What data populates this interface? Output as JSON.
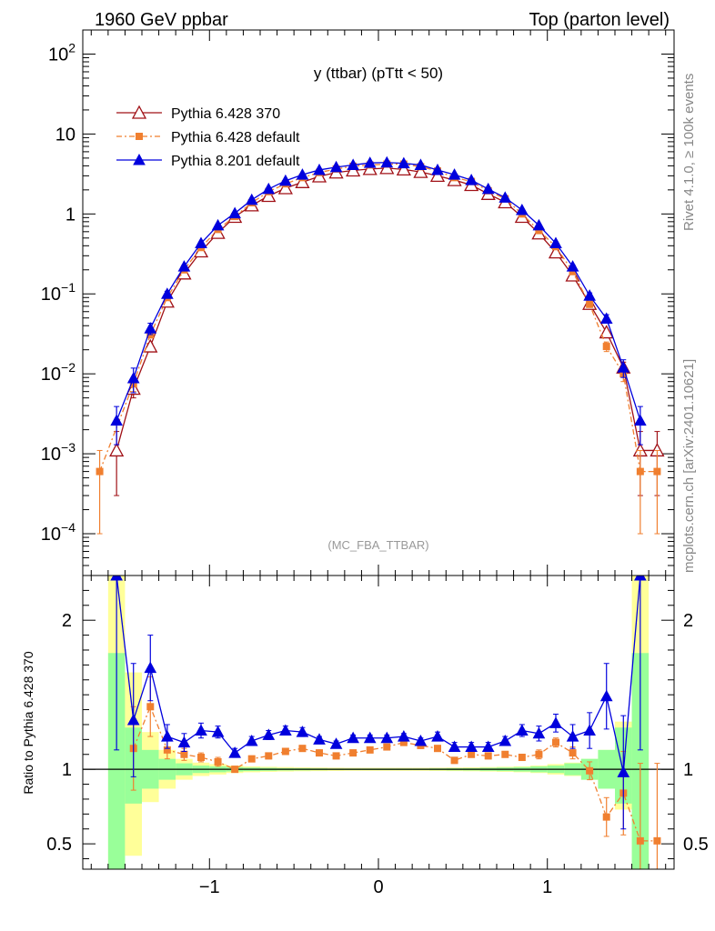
{
  "header": {
    "left": "1960 GeV ppbar",
    "right": "Top (parton level)"
  },
  "side": {
    "rivet": "Rivet 4.1.0, ≥ 100k events",
    "mcplots": "mcplots.cern.ch [arXiv:2401.10621]"
  },
  "chart_data": [
    {
      "type": "line",
      "panel": "main",
      "title": "y (ttbar) (pTtt < 50)",
      "annotation": "(MC_FBA_TTBAR)",
      "xlabel": "",
      "ylabel": "",
      "xlim": [
        -1.75,
        1.75
      ],
      "ylim": [
        3e-05,
        200
      ],
      "yscale": "log",
      "x_ticks": [
        "−1",
        "0",
        "1"
      ],
      "y_ticks": [
        {
          "base": "10",
          "exp": "2",
          "value": 100
        },
        {
          "base": "10",
          "exp": "",
          "value": 10
        },
        {
          "base": "1",
          "exp": "",
          "value": 1
        },
        {
          "base": "10",
          "exp": "−1",
          "value": 0.1
        },
        {
          "base": "10",
          "exp": "−2",
          "value": 0.01
        },
        {
          "base": "10",
          "exp": "−3",
          "value": 0.001
        },
        {
          "base": "10",
          "exp": "−4",
          "value": 0.0001
        }
      ],
      "legend_position": "top-left",
      "series": [
        {
          "name": "Pythia 6.428 370",
          "color": "#a01016",
          "marker": "open-triangle",
          "linestyle": "solid",
          "x": [
            -1.55,
            -1.45,
            -1.35,
            -1.25,
            -1.15,
            -1.05,
            -0.95,
            -0.85,
            -0.75,
            -0.65,
            -0.55,
            -0.45,
            -0.35,
            -0.25,
            -0.15,
            -0.05,
            0.05,
            0.15,
            0.25,
            0.35,
            0.45,
            0.55,
            0.65,
            0.75,
            0.85,
            0.95,
            1.05,
            1.15,
            1.25,
            1.35,
            1.45,
            1.55,
            1.65
          ],
          "y": [
            0.0011,
            0.0065,
            0.022,
            0.08,
            0.18,
            0.34,
            0.58,
            0.92,
            1.28,
            1.68,
            2.1,
            2.5,
            2.95,
            3.3,
            3.5,
            3.65,
            3.75,
            3.6,
            3.35,
            3.0,
            2.65,
            2.3,
            1.78,
            1.4,
            0.92,
            0.57,
            0.33,
            0.17,
            0.075,
            0.033,
            0.012,
            0.0011,
            0.0011
          ],
          "err_low": [
            0.0008,
            0.0015,
            0.002,
            0.004,
            0.005,
            0.01,
            0.02,
            0.03,
            0.03,
            0.04,
            0.04,
            0.05,
            0.05,
            0.05,
            0.05,
            0.05,
            0.05,
            0.05,
            0.05,
            0.05,
            0.04,
            0.04,
            0.04,
            0.03,
            0.03,
            0.02,
            0.01,
            0.005,
            0.003,
            0.002,
            0.002,
            0.0008,
            0.0008
          ],
          "err_high": [
            0.0008,
            0.0015,
            0.002,
            0.004,
            0.005,
            0.01,
            0.02,
            0.03,
            0.03,
            0.04,
            0.04,
            0.05,
            0.05,
            0.05,
            0.05,
            0.05,
            0.05,
            0.05,
            0.05,
            0.05,
            0.04,
            0.04,
            0.04,
            0.03,
            0.03,
            0.02,
            0.01,
            0.005,
            0.003,
            0.002,
            0.002,
            0.0008,
            0.0008
          ]
        },
        {
          "name": "Pythia 6.428 default",
          "color": "#f07f2f",
          "marker": "filled-square",
          "linestyle": "dash-dot",
          "x": [
            -1.65,
            -1.45,
            -1.35,
            -1.25,
            -1.15,
            -1.05,
            -0.95,
            -0.85,
            -0.75,
            -0.65,
            -0.55,
            -0.45,
            -0.35,
            -0.25,
            -0.15,
            -0.05,
            0.05,
            0.15,
            0.25,
            0.35,
            0.45,
            0.55,
            0.65,
            0.75,
            0.85,
            0.95,
            1.05,
            1.15,
            1.25,
            1.35,
            1.45,
            1.55,
            1.65
          ],
          "y": [
            0.0006,
            0.0075,
            0.031,
            0.09,
            0.2,
            0.38,
            0.64,
            0.93,
            1.38,
            1.9,
            2.38,
            2.85,
            3.3,
            3.65,
            3.95,
            4.1,
            4.2,
            4.2,
            3.9,
            3.45,
            2.85,
            2.55,
            1.95,
            1.55,
            1.0,
            0.62,
            0.39,
            0.19,
            0.074,
            0.022,
            0.01,
            0.0006,
            0.0006
          ],
          "err_low": [
            0.0005,
            0.0015,
            0.003,
            0.005,
            0.006,
            0.01,
            0.02,
            0.03,
            0.03,
            0.04,
            0.04,
            0.05,
            0.05,
            0.05,
            0.05,
            0.05,
            0.05,
            0.05,
            0.05,
            0.05,
            0.04,
            0.04,
            0.04,
            0.03,
            0.03,
            0.02,
            0.01,
            0.006,
            0.004,
            0.003,
            0.002,
            0.0005,
            0.0005
          ],
          "err_high": [
            0.0005,
            0.0015,
            0.003,
            0.005,
            0.006,
            0.01,
            0.02,
            0.03,
            0.03,
            0.04,
            0.04,
            0.05,
            0.05,
            0.05,
            0.05,
            0.05,
            0.05,
            0.05,
            0.05,
            0.05,
            0.04,
            0.04,
            0.04,
            0.03,
            0.03,
            0.02,
            0.01,
            0.006,
            0.004,
            0.003,
            0.002,
            0.0005,
            0.0005
          ]
        },
        {
          "name": "Pythia 8.201 default",
          "color": "#0000dd",
          "marker": "filled-triangle",
          "linestyle": "solid",
          "x": [
            -1.55,
            -1.45,
            -1.35,
            -1.25,
            -1.15,
            -1.05,
            -0.95,
            -0.85,
            -0.75,
            -0.65,
            -0.55,
            -0.45,
            -0.35,
            -0.25,
            -0.15,
            -0.05,
            0.05,
            0.15,
            0.25,
            0.35,
            0.45,
            0.55,
            0.65,
            0.75,
            0.85,
            0.95,
            1.05,
            1.15,
            1.25,
            1.35,
            1.45,
            1.55
          ],
          "y": [
            0.0026,
            0.0088,
            0.037,
            0.1,
            0.22,
            0.43,
            0.72,
            1.02,
            1.5,
            2.05,
            2.6,
            3.1,
            3.55,
            3.85,
            4.1,
            4.35,
            4.4,
            4.3,
            4.1,
            3.55,
            3.1,
            2.65,
            2.05,
            1.6,
            1.12,
            0.72,
            0.43,
            0.22,
            0.095,
            0.049,
            0.012,
            0.0026
          ],
          "err_low": [
            0.0013,
            0.003,
            0.006,
            0.008,
            0.01,
            0.015,
            0.02,
            0.03,
            0.03,
            0.04,
            0.04,
            0.05,
            0.05,
            0.05,
            0.05,
            0.05,
            0.05,
            0.05,
            0.05,
            0.05,
            0.04,
            0.04,
            0.04,
            0.03,
            0.03,
            0.02,
            0.015,
            0.01,
            0.008,
            0.006,
            0.003,
            0.0013
          ],
          "err_high": [
            0.0013,
            0.003,
            0.006,
            0.008,
            0.01,
            0.015,
            0.02,
            0.03,
            0.03,
            0.04,
            0.04,
            0.05,
            0.05,
            0.05,
            0.05,
            0.05,
            0.05,
            0.05,
            0.05,
            0.05,
            0.04,
            0.04,
            0.04,
            0.03,
            0.03,
            0.02,
            0.015,
            0.01,
            0.008,
            0.006,
            0.003,
            0.0013
          ]
        }
      ]
    },
    {
      "type": "line",
      "panel": "ratio",
      "title": "",
      "xlabel": "",
      "ylabel": "Ratio to Pythia 6.428 370",
      "xlim": [
        -1.75,
        1.75
      ],
      "ylim": [
        0.33,
        2.3
      ],
      "y_ticks": [
        "2",
        "1",
        "0.5"
      ],
      "x_ticks": [
        "−1",
        "0",
        "1"
      ],
      "reference_line": 1,
      "bands": {
        "bin_edges": [
          -1.6,
          -1.5,
          -1.4,
          -1.3,
          -1.2,
          -1.1,
          -1.0,
          -0.9,
          -0.8,
          -0.7,
          -0.6,
          -0.5,
          -0.4,
          -0.3,
          -0.2,
          -0.1,
          0.0,
          0.1,
          0.2,
          0.3,
          0.4,
          0.5,
          0.6,
          0.7,
          0.8,
          0.9,
          1.0,
          1.1,
          1.2,
          1.3,
          1.4,
          1.5,
          1.6
        ],
        "green_low": [
          0.33,
          0.77,
          0.87,
          0.93,
          0.96,
          0.975,
          0.98,
          0.985,
          0.988,
          0.99,
          0.992,
          0.993,
          0.994,
          0.995,
          0.995,
          0.995,
          0.995,
          0.995,
          0.995,
          0.994,
          0.993,
          0.992,
          0.99,
          0.988,
          0.985,
          0.98,
          0.975,
          0.96,
          0.93,
          0.87,
          0.77,
          0.33
        ],
        "green_high": [
          1.78,
          1.28,
          1.13,
          1.07,
          1.04,
          1.025,
          1.02,
          1.015,
          1.012,
          1.01,
          1.008,
          1.007,
          1.006,
          1.005,
          1.005,
          1.005,
          1.005,
          1.005,
          1.005,
          1.006,
          1.007,
          1.008,
          1.01,
          1.012,
          1.015,
          1.02,
          1.025,
          1.04,
          1.07,
          1.13,
          1.28,
          1.78
        ],
        "yellow_low": [
          0.33,
          0.42,
          0.78,
          0.87,
          0.93,
          0.955,
          0.965,
          0.975,
          0.98,
          0.983,
          0.985,
          0.987,
          0.988,
          0.989,
          0.99,
          0.99,
          0.99,
          0.99,
          0.99,
          0.989,
          0.988,
          0.987,
          0.985,
          0.983,
          0.98,
          0.975,
          0.965,
          0.955,
          0.93,
          0.87,
          0.73,
          0.33
        ],
        "yellow_high": [
          2.3,
          1.65,
          1.25,
          1.13,
          1.07,
          1.045,
          1.035,
          1.025,
          1.02,
          1.017,
          1.015,
          1.013,
          1.012,
          1.011,
          1.01,
          1.01,
          1.01,
          1.01,
          1.01,
          1.011,
          1.012,
          1.013,
          1.015,
          1.017,
          1.02,
          1.025,
          1.035,
          1.045,
          1.07,
          1.13,
          1.32,
          2.3
        ]
      },
      "series": [
        {
          "name": "Pythia 6.428 default",
          "color": "#f07f2f",
          "marker": "filled-square",
          "linestyle": "dash-dot",
          "x": [
            -1.45,
            -1.35,
            -1.25,
            -1.15,
            -1.05,
            -0.95,
            -0.85,
            -0.75,
            -0.65,
            -0.55,
            -0.45,
            -0.35,
            -0.25,
            -0.15,
            -0.05,
            0.05,
            0.15,
            0.25,
            0.35,
            0.45,
            0.55,
            0.65,
            0.75,
            0.85,
            0.95,
            1.05,
            1.15,
            1.25,
            1.35,
            1.45,
            1.55,
            1.65
          ],
          "y": [
            1.14,
            1.42,
            1.13,
            1.1,
            1.08,
            1.05,
            1.0,
            1.07,
            1.09,
            1.12,
            1.14,
            1.11,
            1.09,
            1.11,
            1.13,
            1.15,
            1.18,
            1.16,
            1.14,
            1.06,
            1.1,
            1.09,
            1.1,
            1.08,
            1.1,
            1.18,
            1.11,
            0.99,
            0.68,
            0.84,
            0.52,
            0.52
          ],
          "err_low": [
            0.28,
            0.2,
            0.06,
            0.04,
            0.03,
            0.03,
            0.02,
            0.02,
            0.02,
            0.02,
            0.02,
            0.02,
            0.02,
            0.02,
            0.02,
            0.02,
            0.02,
            0.02,
            0.02,
            0.02,
            0.02,
            0.02,
            0.02,
            0.02,
            0.03,
            0.03,
            0.04,
            0.06,
            0.13,
            0.28,
            0.52,
            0.52
          ],
          "err_high": [
            0.28,
            0.2,
            0.06,
            0.04,
            0.03,
            0.03,
            0.02,
            0.02,
            0.02,
            0.02,
            0.02,
            0.02,
            0.02,
            0.02,
            0.02,
            0.02,
            0.02,
            0.02,
            0.02,
            0.02,
            0.02,
            0.02,
            0.02,
            0.02,
            0.03,
            0.03,
            0.04,
            0.06,
            0.13,
            0.28,
            0.52,
            0.52
          ]
        },
        {
          "name": "Pythia 8.201 default",
          "color": "#0000dd",
          "marker": "filled-triangle",
          "linestyle": "solid",
          "x": [
            -1.55,
            -1.45,
            -1.35,
            -1.25,
            -1.15,
            -1.05,
            -0.95,
            -0.85,
            -0.75,
            -0.65,
            -0.55,
            -0.45,
            -0.35,
            -0.25,
            -0.15,
            -0.05,
            0.05,
            0.15,
            0.25,
            0.35,
            0.45,
            0.55,
            0.65,
            0.75,
            0.85,
            0.95,
            1.05,
            1.15,
            1.25,
            1.35,
            1.45,
            1.55
          ],
          "y": [
            2.33,
            1.33,
            1.68,
            1.22,
            1.18,
            1.26,
            1.25,
            1.11,
            1.19,
            1.23,
            1.26,
            1.25,
            1.2,
            1.17,
            1.21,
            1.21,
            1.21,
            1.22,
            1.19,
            1.22,
            1.15,
            1.15,
            1.15,
            1.19,
            1.26,
            1.24,
            1.31,
            1.22,
            1.26,
            1.49,
            0.98,
            2.33
          ],
          "err_low": [
            1.2,
            0.38,
            0.22,
            0.08,
            0.06,
            0.05,
            0.04,
            0.03,
            0.03,
            0.03,
            0.03,
            0.03,
            0.02,
            0.02,
            0.02,
            0.02,
            0.02,
            0.02,
            0.02,
            0.03,
            0.03,
            0.03,
            0.03,
            0.03,
            0.04,
            0.05,
            0.06,
            0.08,
            0.12,
            0.22,
            0.38,
            1.2
          ],
          "err_high": [
            1.2,
            0.38,
            0.22,
            0.08,
            0.06,
            0.05,
            0.04,
            0.03,
            0.03,
            0.03,
            0.03,
            0.03,
            0.02,
            0.02,
            0.02,
            0.02,
            0.02,
            0.02,
            0.02,
            0.03,
            0.03,
            0.03,
            0.03,
            0.03,
            0.04,
            0.05,
            0.06,
            0.08,
            0.12,
            0.22,
            0.38,
            1.2
          ]
        }
      ]
    }
  ]
}
